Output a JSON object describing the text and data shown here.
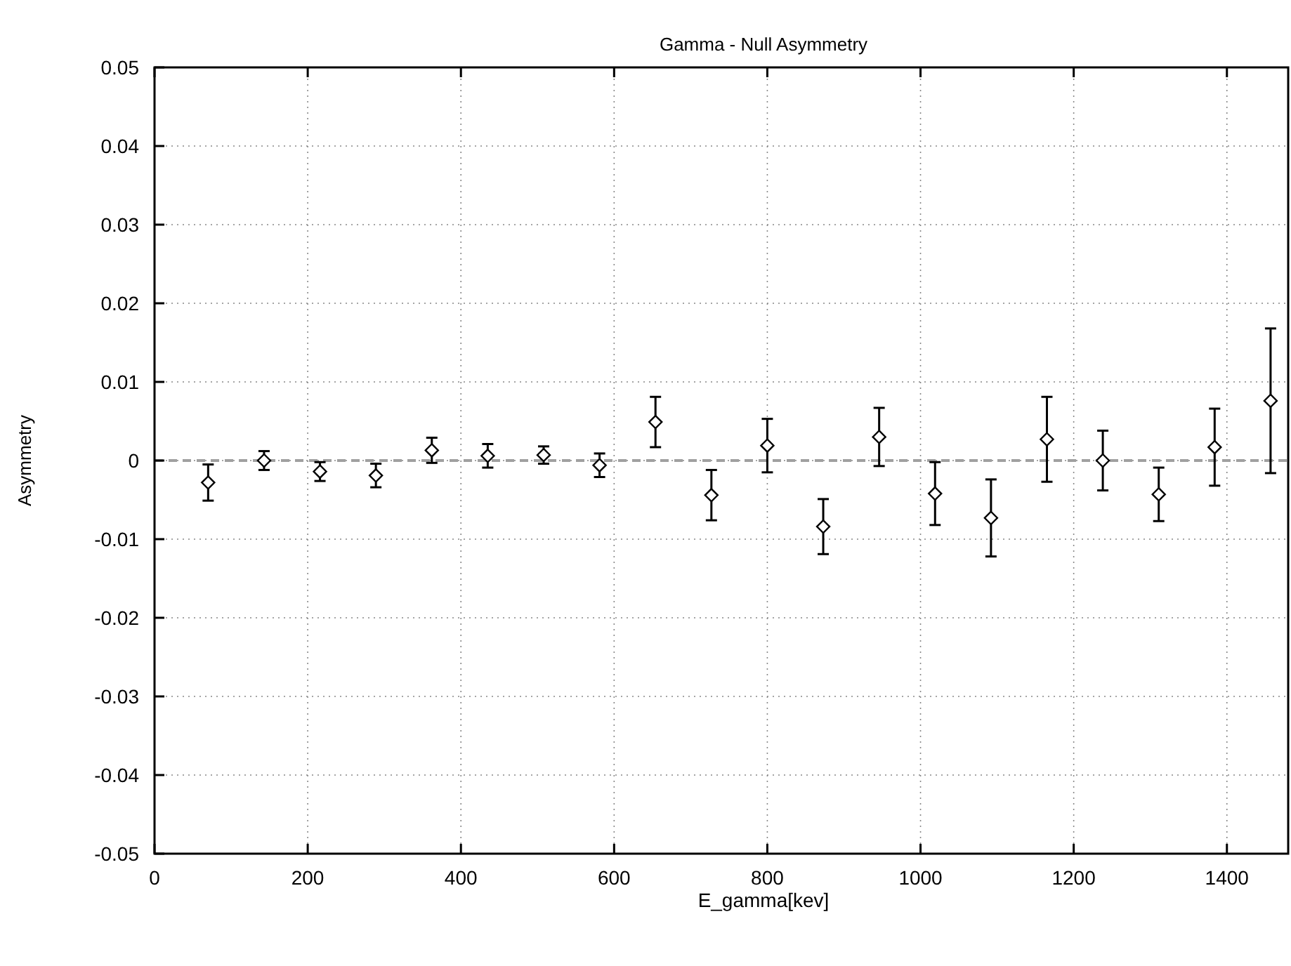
{
  "chart_data": {
    "type": "scatter",
    "title": "Gamma - Null Asymmetry",
    "xlabel": "E_gamma[kev]",
    "ylabel": "Asymmetry",
    "x": [
      70,
      143,
      216,
      289,
      362,
      435,
      508,
      581,
      654,
      727,
      800,
      873,
      946,
      1019,
      1092,
      1165,
      1238,
      1311,
      1384,
      1457
    ],
    "values": [
      -0.0028,
      0.0,
      -0.0014,
      -0.0019,
      0.0013,
      0.0006,
      0.0007,
      -0.0006,
      0.0049,
      -0.0044,
      0.0019,
      -0.0084,
      0.003,
      -0.0042,
      -0.0073,
      0.0027,
      0.0,
      -0.0043,
      0.0017,
      0.0076
    ],
    "errors": [
      0.0023,
      0.0012,
      0.0012,
      0.0015,
      0.0016,
      0.0015,
      0.0011,
      0.0015,
      0.0032,
      0.0032,
      0.0034,
      0.0035,
      0.0037,
      0.004,
      0.0049,
      0.0054,
      0.0038,
      0.0034,
      0.0049,
      0.0092
    ],
    "color": "#000000",
    "marker": "diamond",
    "xlim": [
      0,
      1480
    ],
    "xticks": [
      0,
      200,
      400,
      600,
      800,
      1000,
      1200,
      1400
    ],
    "ylim": [
      -0.05,
      0.05
    ],
    "yticks": [
      -0.05,
      -0.04,
      -0.03,
      -0.02,
      -0.01,
      0,
      0.01,
      0.02,
      0.03,
      0.04,
      0.05
    ],
    "grid": true,
    "ref_lines": [
      {
        "axis": "y",
        "value": 0,
        "color": "#a0a0a0",
        "line_style": "dashed"
      }
    ]
  }
}
